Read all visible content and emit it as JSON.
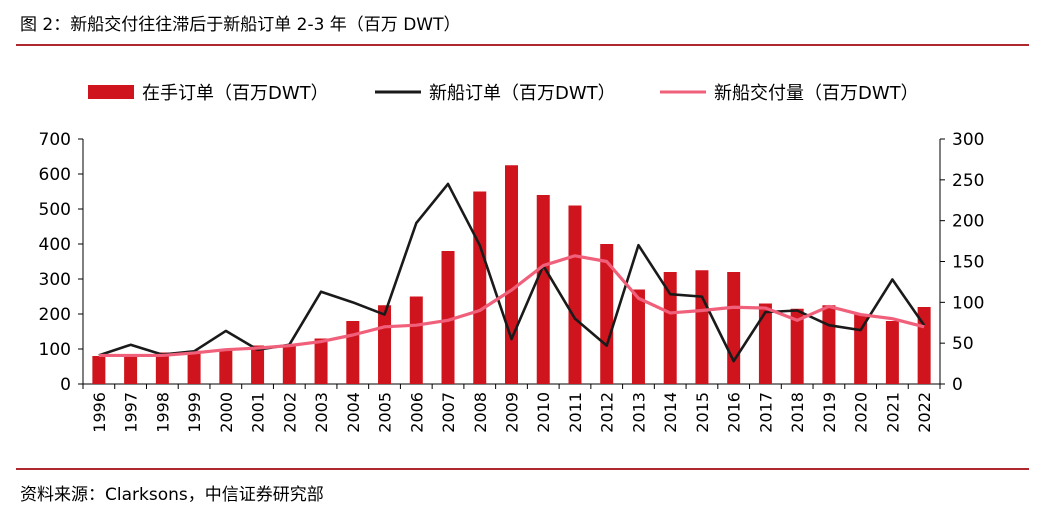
{
  "title": "图 2：新船交付往往滞后于新船订单 2-3 年（百万 DWT）",
  "source": "资料来源：Clarksons，中信证券研究部",
  "chart_data": {
    "type": "bar",
    "categories": [
      "1996",
      "1997",
      "1998",
      "1999",
      "2000",
      "2001",
      "2002",
      "2003",
      "2004",
      "2005",
      "2006",
      "2007",
      "2008",
      "2009",
      "2010",
      "2011",
      "2012",
      "2013",
      "2014",
      "2015",
      "2016",
      "2017",
      "2018",
      "2019",
      "2020",
      "2021",
      "2022"
    ],
    "left_axis": {
      "ylim": [
        0,
        700
      ],
      "ticks": [
        "0",
        "100",
        "200",
        "300",
        "400",
        "500",
        "600",
        "700"
      ]
    },
    "right_axis": {
      "ylim": [
        0,
        300
      ],
      "ticks": [
        "0",
        "50",
        "100",
        "150",
        "200",
        "250",
        "300"
      ]
    },
    "legend_position": "top",
    "series": [
      {
        "name": "在手订单（百万DWT）",
        "type": "bar",
        "axis": "left",
        "color": "#d0141d",
        "values": [
          80,
          80,
          90,
          95,
          100,
          110,
          110,
          130,
          180,
          225,
          250,
          380,
          550,
          625,
          540,
          510,
          400,
          270,
          320,
          325,
          320,
          230,
          215,
          225,
          200,
          180,
          220
        ]
      },
      {
        "name": "新船订单（百万DWT）",
        "type": "line",
        "axis": "right",
        "color": "#1a1a1a",
        "values": [
          35,
          48,
          36,
          40,
          65,
          42,
          48,
          113,
          100,
          85,
          197,
          245,
          170,
          55,
          145,
          80,
          47,
          170,
          110,
          107,
          28,
          88,
          90,
          72,
          66,
          128,
          72
        ]
      },
      {
        "name": "新船交付量（百万DWT）",
        "type": "line",
        "axis": "right",
        "color": "#f0607a",
        "values": [
          35,
          35,
          35,
          38,
          42,
          44,
          47,
          52,
          60,
          70,
          72,
          78,
          90,
          115,
          145,
          157,
          150,
          105,
          87,
          90,
          94,
          93,
          78,
          95,
          85,
          80,
          70
        ]
      }
    ]
  }
}
